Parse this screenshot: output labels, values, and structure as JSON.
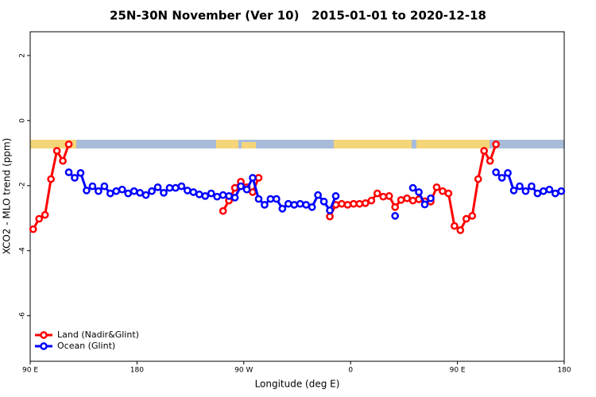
{
  "chart_data": {
    "type": "line",
    "title": "25N-30N November (Ver 10)   2015-01-01 to 2020-12-18",
    "x_label": "Longitude (deg E)",
    "y_label": "XCO2 - MLO trend (ppm)",
    "xlim": [
      90,
      540
    ],
    "ylim": [
      -7.4,
      2.73
    ],
    "xticks": [
      {
        "value": 90,
        "label": "90 E"
      },
      180,
      {
        "value": 270,
        "label": "90 W"
      },
      {
        "value": 360,
        "label": "0"
      },
      {
        "value": 450,
        "label": "90 E"
      },
      {
        "value": 540,
        "label": "180"
      }
    ],
    "yticks": [
      2,
      0,
      -2,
      -4,
      -6
    ],
    "legend": "bottom-left",
    "x": [
      92.5,
      97.5,
      102.5,
      107.5,
      112.5,
      117.5,
      122.5,
      127.5,
      132.5,
      137.5,
      142.5,
      147.5,
      152.5,
      157.5,
      162.5,
      167.5,
      172.5,
      177.5,
      182.5,
      187.5,
      192.5,
      197.5,
      202.5,
      207.5,
      212.5,
      217.5,
      222.5,
      227.5,
      232.5,
      237.5,
      242.5,
      247.5,
      252.5,
      257.5,
      262.5,
      267.5,
      272.5,
      277.5,
      282.5,
      287.5,
      292.5,
      297.5,
      302.5,
      307.5,
      312.5,
      317.5,
      322.5,
      327.5,
      332.5,
      337.5,
      342.5,
      347.5,
      352.5,
      357.5,
      362.5,
      367.5,
      372.5,
      377.5,
      382.5,
      387.5,
      392.5,
      397.5,
      402.5,
      407.5,
      412.5,
      417.5,
      422.5,
      427.5,
      432.5,
      437.5,
      442.5,
      447.5,
      452.5,
      457.5,
      462.5,
      467.5,
      472.5,
      477.5,
      482.5,
      487.5,
      492.5,
      497.5,
      502.5,
      507.5,
      512.5,
      517.5,
      522.5,
      527.5,
      532.5,
      537.5
    ],
    "series": [
      {
        "name": "Land (Nadir&Glint)",
        "color": "#ff0000",
        "values": [
          -3.34,
          -3.02,
          -2.9,
          -1.8,
          -0.93,
          -1.24,
          -0.73,
          null,
          null,
          null,
          null,
          null,
          null,
          null,
          null,
          null,
          null,
          null,
          null,
          null,
          null,
          null,
          null,
          null,
          null,
          null,
          null,
          null,
          null,
          null,
          null,
          null,
          -2.78,
          -2.46,
          -2.07,
          -1.88,
          -2.05,
          -2.2,
          -1.76,
          null,
          null,
          null,
          null,
          null,
          null,
          null,
          null,
          null,
          null,
          null,
          -2.95,
          -2.59,
          -2.56,
          -2.59,
          -2.56,
          -2.56,
          -2.54,
          -2.46,
          -2.24,
          -2.34,
          -2.32,
          -2.66,
          -2.44,
          -2.39,
          -2.46,
          -2.42,
          -2.48,
          -2.49,
          -2.05,
          -2.17,
          -2.24,
          -3.24,
          -3.37,
          -3.02,
          -2.93,
          -1.8,
          -0.93,
          -1.24,
          -0.73,
          null,
          null,
          null,
          null,
          null,
          null,
          null,
          null,
          null,
          null,
          null
        ]
      },
      {
        "name": "Ocean (Glint)",
        "color": "#0000ff",
        "values": [
          null,
          null,
          null,
          null,
          null,
          null,
          -1.59,
          -1.76,
          -1.61,
          -2.15,
          -2.02,
          -2.17,
          -2.02,
          -2.24,
          -2.17,
          -2.12,
          -2.24,
          -2.17,
          -2.22,
          -2.29,
          -2.17,
          -2.05,
          -2.22,
          -2.07,
          -2.07,
          -2.02,
          -2.15,
          -2.2,
          -2.27,
          -2.32,
          -2.24,
          -2.34,
          -2.29,
          -2.32,
          -2.37,
          -2.02,
          -2.12,
          -1.76,
          -2.41,
          -2.59,
          -2.41,
          -2.41,
          -2.71,
          -2.56,
          -2.59,
          -2.56,
          -2.59,
          -2.66,
          -2.29,
          -2.49,
          -2.76,
          -2.32,
          null,
          null,
          null,
          null,
          null,
          null,
          null,
          null,
          null,
          -2.93,
          null,
          null,
          -2.07,
          -2.2,
          -2.58,
          -2.39,
          null,
          null,
          null,
          null,
          null,
          null,
          null,
          null,
          null,
          null,
          -1.59,
          -1.76,
          -1.61,
          -2.15,
          -2.02,
          -2.17,
          -2.02,
          -2.24,
          -2.17,
          -2.12,
          -2.24,
          -2.17
        ]
      }
    ]
  }
}
